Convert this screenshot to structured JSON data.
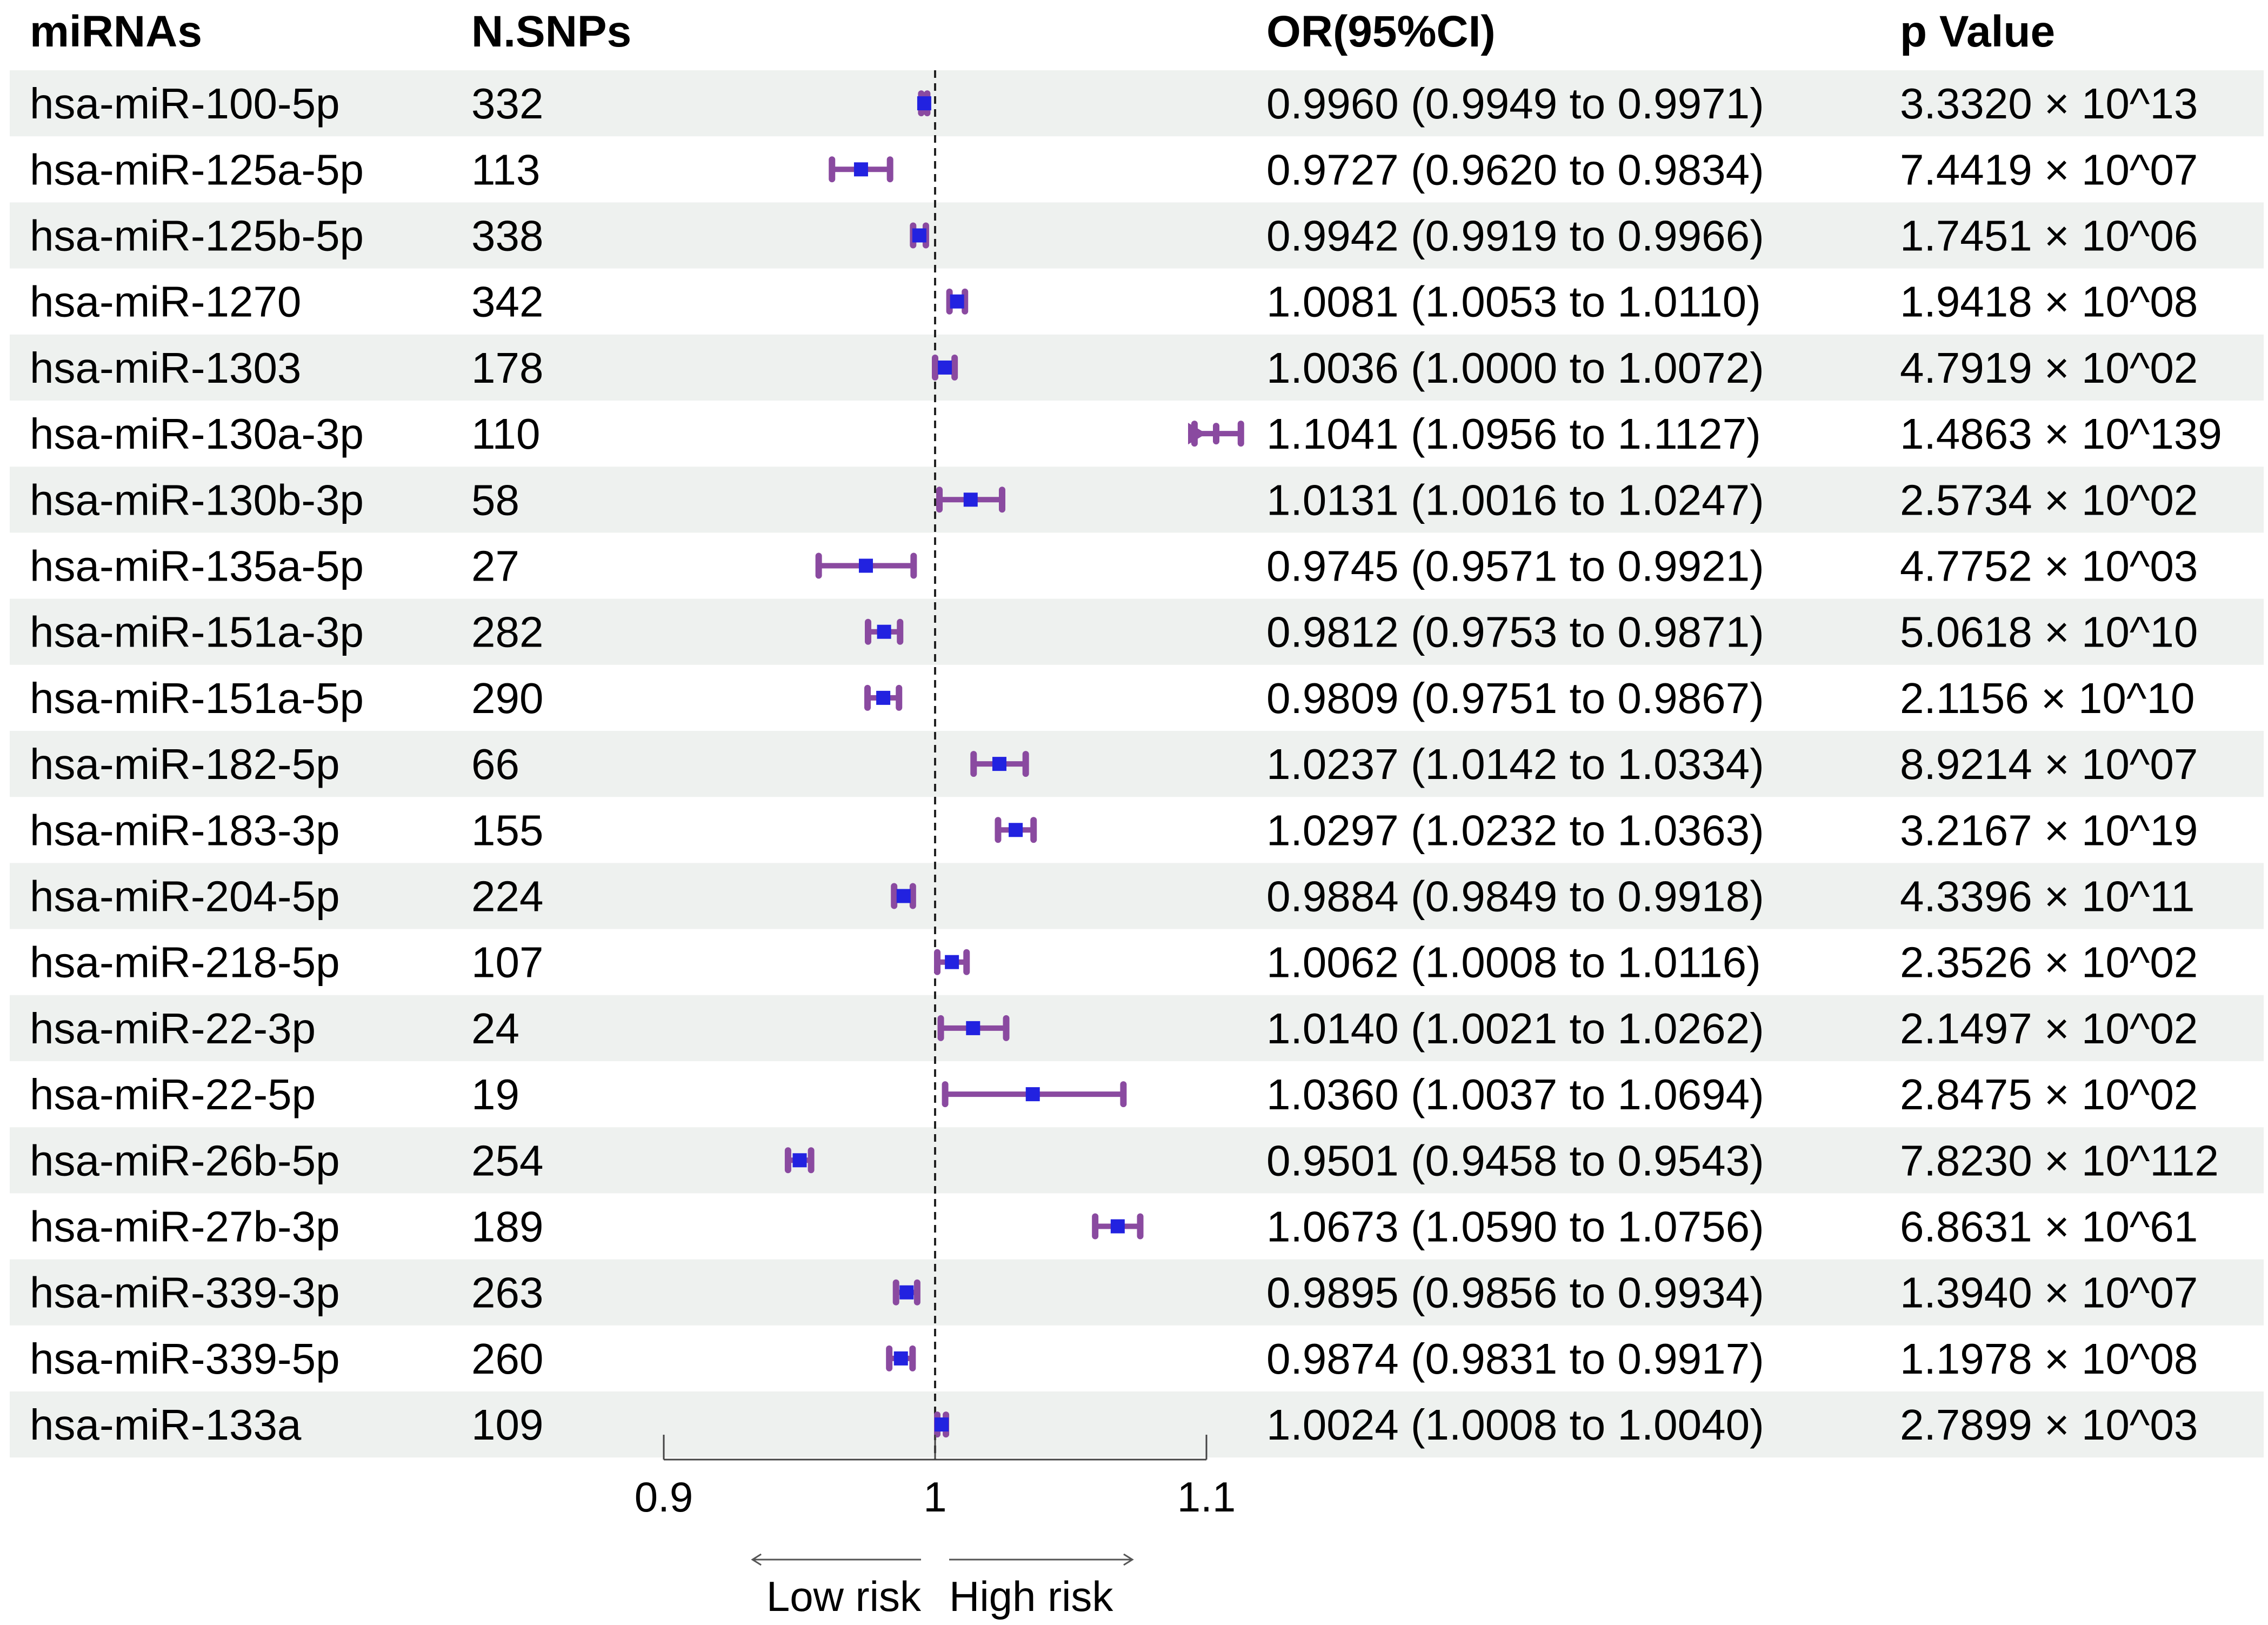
{
  "chart_data": {
    "type": "forest",
    "headers": {
      "name": "miRNAs",
      "snps": "N.SNPs",
      "or": "OR(95%CI)",
      "p": "p Value"
    },
    "reference_line": 1,
    "xlim": [
      0.9,
      1.1
    ],
    "x_ticks": [
      {
        "value": 0.9,
        "label": "0.9"
      },
      {
        "value": 1,
        "label": "1"
      },
      {
        "value": 1.1,
        "label": "1.1"
      }
    ],
    "direction_labels": {
      "low": "Low risk",
      "high": "High risk"
    },
    "colors": {
      "ci": "#8a4aa0",
      "point": "#2222e0",
      "stripe": "#eef1ef",
      "axis": "#444444"
    },
    "rows": [
      {
        "name": "hsa-miR-100-5p",
        "snps": "332",
        "or": 0.996,
        "lo": 0.9949,
        "hi": 0.9971,
        "or_text": "0.9960 (0.9949 to 0.9971)",
        "p_text": "3.3320 × 10^13"
      },
      {
        "name": "hsa-miR-125a-5p",
        "snps": "113",
        "or": 0.9727,
        "lo": 0.962,
        "hi": 0.9834,
        "or_text": "0.9727 (0.9620 to 0.9834)",
        "p_text": "7.4419 × 10^07"
      },
      {
        "name": "hsa-miR-125b-5p",
        "snps": "338",
        "or": 0.9942,
        "lo": 0.9919,
        "hi": 0.9966,
        "or_text": "0.9942 (0.9919 to 0.9966)",
        "p_text": "1.7451 × 10^06"
      },
      {
        "name": "hsa-miR-1270",
        "snps": "342",
        "or": 1.0081,
        "lo": 1.0053,
        "hi": 1.011,
        "or_text": "1.0081 (1.0053 to 1.0110)",
        "p_text": "1.9418 × 10^08"
      },
      {
        "name": "hsa-miR-1303",
        "snps": "178",
        "or": 1.0036,
        "lo": 1.0,
        "hi": 1.0072,
        "or_text": "1.0036 (1.0000 to 1.0072)",
        "p_text": "4.7919 × 10^02"
      },
      {
        "name": "hsa-miR-130a-3p",
        "snps": "110",
        "or": 1.1041,
        "lo": 1.0956,
        "hi": 1.1127,
        "or_text": "1.1041 (1.0956 to 1.1127)",
        "p_text": "1.4863 × 10^139"
      },
      {
        "name": "hsa-miR-130b-3p",
        "snps": "58",
        "or": 1.0131,
        "lo": 1.0016,
        "hi": 1.0247,
        "or_text": "1.0131 (1.0016 to 1.0247)",
        "p_text": "2.5734 × 10^02"
      },
      {
        "name": "hsa-miR-135a-5p",
        "snps": "27",
        "or": 0.9745,
        "lo": 0.9571,
        "hi": 0.9921,
        "or_text": "0.9745 (0.9571 to 0.9921)",
        "p_text": "4.7752 × 10^03"
      },
      {
        "name": "hsa-miR-151a-3p",
        "snps": "282",
        "or": 0.9812,
        "lo": 0.9753,
        "hi": 0.9871,
        "or_text": "0.9812 (0.9753 to 0.9871)",
        "p_text": "5.0618 × 10^10"
      },
      {
        "name": "hsa-miR-151a-5p",
        "snps": "290",
        "or": 0.9809,
        "lo": 0.9751,
        "hi": 0.9867,
        "or_text": "0.9809 (0.9751 to 0.9867)",
        "p_text": "2.1156 × 10^10"
      },
      {
        "name": "hsa-miR-182-5p",
        "snps": "66",
        "or": 1.0237,
        "lo": 1.0142,
        "hi": 1.0334,
        "or_text": "1.0237 (1.0142 to 1.0334)",
        "p_text": "8.9214 × 10^07"
      },
      {
        "name": "hsa-miR-183-3p",
        "snps": "155",
        "or": 1.0297,
        "lo": 1.0232,
        "hi": 1.0363,
        "or_text": "1.0297 (1.0232 to 1.0363)",
        "p_text": "3.2167 × 10^19"
      },
      {
        "name": "hsa-miR-204-5p",
        "snps": "224",
        "or": 0.9884,
        "lo": 0.9849,
        "hi": 0.9918,
        "or_text": "0.9884 (0.9849 to 0.9918)",
        "p_text": "4.3396 × 10^11"
      },
      {
        "name": "hsa-miR-218-5p",
        "snps": "107",
        "or": 1.0062,
        "lo": 1.0008,
        "hi": 1.0116,
        "or_text": "1.0062 (1.0008 to 1.0116)",
        "p_text": "2.3526 × 10^02"
      },
      {
        "name": "hsa-miR-22-3p",
        "snps": "24",
        "or": 1.014,
        "lo": 1.0021,
        "hi": 1.0262,
        "or_text": "1.0140 (1.0021 to 1.0262)",
        "p_text": "2.1497 × 10^02"
      },
      {
        "name": "hsa-miR-22-5p",
        "snps": "19",
        "or": 1.036,
        "lo": 1.0037,
        "hi": 1.0694,
        "or_text": "1.0360 (1.0037 to 1.0694)",
        "p_text": "2.8475 × 10^02"
      },
      {
        "name": "hsa-miR-26b-5p",
        "snps": "254",
        "or": 0.9501,
        "lo": 0.9458,
        "hi": 0.9543,
        "or_text": "0.9501 (0.9458 to 0.9543)",
        "p_text": "7.8230 × 10^112"
      },
      {
        "name": "hsa-miR-27b-3p",
        "snps": "189",
        "or": 1.0673,
        "lo": 1.059,
        "hi": 1.0756,
        "or_text": "1.0673 (1.0590 to 1.0756)",
        "p_text": "6.8631 × 10^61"
      },
      {
        "name": "hsa-miR-339-3p",
        "snps": "263",
        "or": 0.9895,
        "lo": 0.9856,
        "hi": 0.9934,
        "or_text": "0.9895 (0.9856 to 0.9934)",
        "p_text": "1.3940 × 10^07"
      },
      {
        "name": "hsa-miR-339-5p",
        "snps": "260",
        "or": 0.9874,
        "lo": 0.9831,
        "hi": 0.9917,
        "or_text": "0.9874 (0.9831 to 0.9917)",
        "p_text": "1.1978 × 10^08"
      },
      {
        "name": "hsa-miR-133a",
        "snps": "109",
        "or": 1.0024,
        "lo": 1.0008,
        "hi": 1.004,
        "or_text": "1.0024 (1.0008 to 1.0040)",
        "p_text": "2.7899 × 10^03"
      }
    ]
  }
}
